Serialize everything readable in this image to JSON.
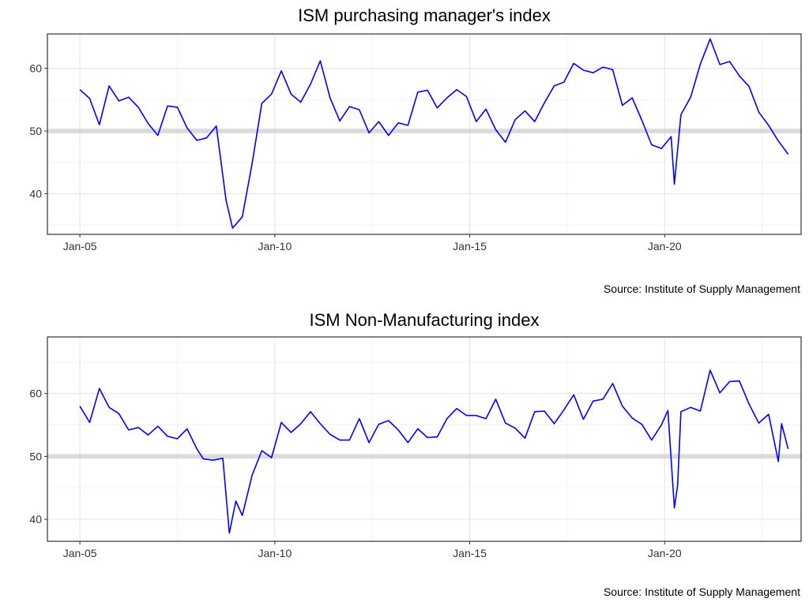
{
  "chart_data": [
    {
      "type": "line",
      "title": "ISM purchasing manager's index",
      "source": "Source: Institute of Supply Management",
      "xlabel": "",
      "ylabel": "",
      "x_ticks": [
        "Jan-05",
        "Jan-10",
        "Jan-15",
        "Jan-20"
      ],
      "y_ticks": [
        40,
        50,
        60
      ],
      "xlim": [
        "2004-03",
        "2023-07"
      ],
      "ylim": [
        33.5,
        65.5
      ],
      "reference_line": 50,
      "grid": true,
      "line_color": "#0000ff",
      "x": [
        "2005-01",
        "2005-04",
        "2005-07",
        "2005-10",
        "2006-01",
        "2006-04",
        "2006-07",
        "2006-10",
        "2007-01",
        "2007-04",
        "2007-07",
        "2007-10",
        "2008-01",
        "2008-04",
        "2008-07",
        "2008-10",
        "2008-12",
        "2009-03",
        "2009-06",
        "2009-09",
        "2009-12",
        "2010-03",
        "2010-06",
        "2010-09",
        "2010-12",
        "2011-03",
        "2011-06",
        "2011-09",
        "2011-12",
        "2012-03",
        "2012-06",
        "2012-09",
        "2012-12",
        "2013-03",
        "2013-06",
        "2013-09",
        "2013-12",
        "2014-03",
        "2014-06",
        "2014-09",
        "2014-12",
        "2015-03",
        "2015-06",
        "2015-09",
        "2015-12",
        "2016-03",
        "2016-06",
        "2016-09",
        "2016-12",
        "2017-03",
        "2017-06",
        "2017-09",
        "2017-12",
        "2018-03",
        "2018-06",
        "2018-09",
        "2018-12",
        "2019-03",
        "2019-06",
        "2019-09",
        "2019-12",
        "2020-03",
        "2020-04",
        "2020-06",
        "2020-09",
        "2020-12",
        "2021-03",
        "2021-06",
        "2021-09",
        "2021-12",
        "2022-03",
        "2022-06",
        "2022-09",
        "2022-12",
        "2023-03"
      ],
      "values": [
        56.6,
        55.2,
        51.0,
        57.2,
        54.8,
        55.4,
        53.8,
        51.2,
        49.3,
        54.0,
        53.8,
        50.5,
        48.5,
        48.9,
        50.8,
        38.9,
        34.5,
        36.3,
        44.8,
        54.4,
        55.9,
        59.6,
        55.9,
        54.6,
        57.5,
        61.2,
        55.3,
        51.6,
        53.9,
        53.4,
        49.7,
        51.5,
        49.3,
        51.3,
        50.9,
        56.2,
        56.5,
        53.7,
        55.3,
        56.6,
        55.5,
        51.5,
        53.5,
        50.2,
        48.2,
        51.8,
        53.2,
        51.5,
        54.5,
        57.2,
        57.8,
        60.8,
        59.7,
        59.3,
        60.2,
        59.8,
        54.1,
        55.3,
        51.7,
        47.8,
        47.2,
        49.1,
        41.5,
        52.6,
        55.4,
        60.7,
        64.7,
        60.6,
        61.1,
        58.8,
        57.1,
        53.0,
        50.9,
        48.4,
        46.3
      ]
    },
    {
      "type": "line",
      "title": "ISM Non-Manufacturing index",
      "source": "Source: Institute of Supply Management",
      "xlabel": "",
      "ylabel": "",
      "x_ticks": [
        "Jan-05",
        "Jan-10",
        "Jan-15",
        "Jan-20"
      ],
      "y_ticks": [
        40,
        50,
        60
      ],
      "xlim": [
        "2004-03",
        "2023-07"
      ],
      "ylim": [
        36.5,
        69.0
      ],
      "reference_line": 50,
      "grid": true,
      "line_color": "#0000ff",
      "x": [
        "2005-01",
        "2005-04",
        "2005-07",
        "2005-10",
        "2006-01",
        "2006-04",
        "2006-07",
        "2006-10",
        "2007-01",
        "2007-04",
        "2007-07",
        "2007-10",
        "2008-01",
        "2008-03",
        "2008-06",
        "2008-09",
        "2008-11",
        "2009-01",
        "2009-03",
        "2009-06",
        "2009-09",
        "2009-12",
        "2010-03",
        "2010-06",
        "2010-09",
        "2010-12",
        "2011-03",
        "2011-06",
        "2011-09",
        "2011-12",
        "2012-03",
        "2012-06",
        "2012-09",
        "2012-12",
        "2013-03",
        "2013-06",
        "2013-09",
        "2013-12",
        "2014-03",
        "2014-06",
        "2014-09",
        "2014-12",
        "2015-03",
        "2015-06",
        "2015-09",
        "2015-12",
        "2016-03",
        "2016-06",
        "2016-09",
        "2016-12",
        "2017-03",
        "2017-06",
        "2017-09",
        "2017-12",
        "2018-03",
        "2018-06",
        "2018-09",
        "2018-12",
        "2019-03",
        "2019-06",
        "2019-09",
        "2019-12",
        "2020-02",
        "2020-04",
        "2020-05",
        "2020-06",
        "2020-09",
        "2020-12",
        "2021-03",
        "2021-06",
        "2021-09",
        "2021-12",
        "2022-03",
        "2022-06",
        "2022-09",
        "2022-12",
        "2023-01",
        "2023-03"
      ],
      "values": [
        58.0,
        55.4,
        60.8,
        57.8,
        56.8,
        54.2,
        54.6,
        53.4,
        54.8,
        53.2,
        52.8,
        54.4,
        51.2,
        49.6,
        49.4,
        49.7,
        37.8,
        42.9,
        40.6,
        47.0,
        50.9,
        49.8,
        55.4,
        53.8,
        55.2,
        57.1,
        55.2,
        53.5,
        52.6,
        52.6,
        56.0,
        52.2,
        55.1,
        55.7,
        54.2,
        52.2,
        54.4,
        53.0,
        53.1,
        56.0,
        57.6,
        56.5,
        56.5,
        56.0,
        59.1,
        55.3,
        54.5,
        52.9,
        57.1,
        57.2,
        55.2,
        57.4,
        59.8,
        55.9,
        58.8,
        59.1,
        61.6,
        58.0,
        56.1,
        55.1,
        52.6,
        55.0,
        57.3,
        41.8,
        45.4,
        57.1,
        57.8,
        57.2,
        63.7,
        60.1,
        61.9,
        62.0,
        58.3,
        55.3,
        56.7,
        49.2,
        55.2,
        51.2
      ]
    }
  ]
}
